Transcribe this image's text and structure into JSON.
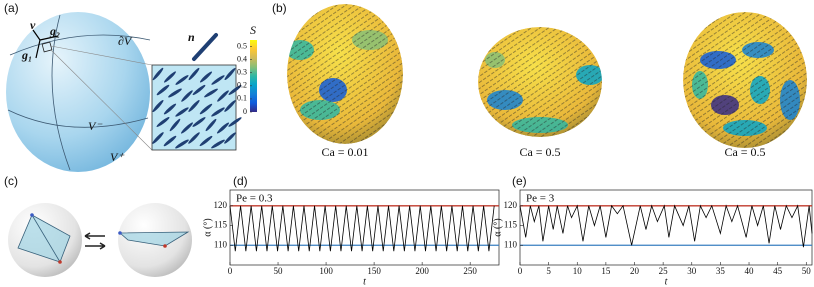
{
  "panels": {
    "a": {
      "label": "(a)",
      "v": "v",
      "g2": "g₂",
      "g1": "g₁",
      "dV": "∂V",
      "n": "n",
      "Vminus": "V⁻",
      "Vplus": "V⁺"
    },
    "b": {
      "label": "(b)",
      "captions": [
        "Ca = 0.01",
        "Ca = 0.5",
        "Ca = 0.5"
      ]
    },
    "c": {
      "label": "(c)"
    }
  },
  "colorbar": {
    "label": "S",
    "clim": [
      0,
      0.55
    ],
    "ticks": [
      0,
      0.1,
      0.2,
      0.3,
      0.4,
      0.5
    ],
    "colors": [
      "#352a87",
      "#0f5cdd",
      "#1481d6",
      "#06a4ca",
      "#2eb7a4",
      "#87bf77",
      "#d1bb59",
      "#fec832",
      "#f9fb0e"
    ]
  },
  "chart_data": [
    {
      "type": "line",
      "panel_label": "(d)",
      "annotation": "Pe = 0.3",
      "xlabel": "t",
      "ylabel": "α (°)",
      "xlim": [
        0,
        280
      ],
      "ylim": [
        105,
        124
      ],
      "xticks": [
        0,
        50,
        100,
        150,
        200,
        250
      ],
      "yticks": [
        110,
        115,
        120
      ],
      "hlines": [
        {
          "value": 120,
          "color": "#c0392b"
        },
        {
          "value": 110,
          "color": "#3a7fc1"
        }
      ],
      "x": [
        0,
        5.5,
        11,
        16.5,
        22,
        27.5,
        33,
        38.5,
        44,
        49.5,
        55,
        60.5,
        66,
        71.5,
        77,
        82.5,
        88,
        93.5,
        99,
        104.5,
        110,
        115.5,
        121,
        126.5,
        132,
        137.5,
        143,
        148.5,
        154,
        159.5,
        165,
        170.5,
        176,
        181.5,
        187,
        192.5,
        198,
        203.5,
        209,
        214.5,
        220,
        225.5,
        231,
        236.5,
        242,
        247.5,
        253,
        258.5,
        264,
        269.5,
        275
      ],
      "series": [
        {
          "color": "#000000",
          "values": [
            120,
            108.5,
            120,
            108.5,
            120,
            108.5,
            120,
            108.5,
            120,
            108.5,
            120,
            108.5,
            120,
            108.5,
            120,
            108.5,
            120,
            108.5,
            120,
            108.5,
            120,
            108.5,
            120,
            108.5,
            120,
            108.5,
            120,
            108.5,
            120,
            108.5,
            120,
            108.5,
            120,
            108.5,
            120,
            108.5,
            120,
            108.5,
            120,
            108.5,
            120,
            108.5,
            120,
            108.5,
            120,
            108.5,
            120,
            108.5,
            120,
            108.5,
            120
          ]
        }
      ]
    },
    {
      "type": "line",
      "panel_label": "(e)",
      "annotation": "Pe = 3",
      "xlabel": "t",
      "ylabel": "α (°)",
      "xlim": [
        0,
        51
      ],
      "ylim": [
        105,
        124
      ],
      "xticks": [
        0,
        5,
        10,
        15,
        20,
        25,
        30,
        35,
        40,
        45,
        50
      ],
      "yticks": [
        110,
        115,
        120
      ],
      "hlines": [
        {
          "value": 120,
          "color": "#c0392b"
        },
        {
          "value": 110,
          "color": "#3a7fc1"
        }
      ],
      "x": [
        0,
        1,
        1.8,
        2.5,
        3.3,
        4,
        5,
        5.8,
        6.5,
        7.5,
        8.3,
        9,
        10,
        11,
        12,
        13,
        14,
        15,
        16,
        17,
        18,
        19.5,
        21,
        22,
        23,
        24,
        25.2,
        26,
        27,
        28.5,
        29.5,
        30.5,
        31.5,
        32.5,
        33.5,
        35,
        36,
        37,
        38,
        39.5,
        40.5,
        41.5,
        42.5,
        43.5,
        44.5,
        45.5,
        46.5,
        47.5,
        48.5,
        49.5,
        50.5,
        51
      ],
      "series": [
        {
          "color": "#000000",
          "values": [
            120,
            112,
            120,
            116,
            120,
            111,
            120,
            114,
            120,
            113,
            120,
            117,
            120,
            111,
            120,
            115,
            120,
            112,
            120,
            118,
            120,
            110,
            120,
            114,
            120,
            116,
            120,
            112,
            120,
            115,
            120,
            111,
            120,
            117,
            120,
            113,
            120,
            116,
            120,
            112,
            120,
            115,
            120,
            110.5,
            120,
            114,
            120,
            117,
            120,
            109.5,
            120,
            113
          ]
        }
      ]
    }
  ]
}
